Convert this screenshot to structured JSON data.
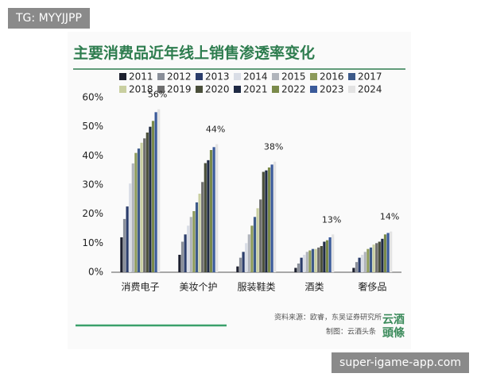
{
  "top_tag": "TG: MYYJJPP",
  "bottom_tag": "super-igame-app.com",
  "source": "资料来源：欧睿，东吴证券研究所",
  "credit": "制图：云酒头条",
  "logo": [
    "云酒",
    "頭條"
  ],
  "chart_data": {
    "type": "bar",
    "title": "主要消费品近年线上销售渗透率变化",
    "categories": [
      "消费电子",
      "美妆个护",
      "服装鞋类",
      "酒类",
      "奢侈品"
    ],
    "ylim": [
      0,
      60
    ],
    "yticks": [
      {
        "value": 0,
        "label": "0%"
      },
      {
        "value": 10,
        "label": "10%"
      },
      {
        "value": 20,
        "label": "20%"
      },
      {
        "value": 30,
        "label": "30%"
      },
      {
        "value": 40,
        "label": "40%"
      },
      {
        "value": 50,
        "label": "50%"
      },
      {
        "value": 60,
        "label": "60%"
      }
    ],
    "grid": false,
    "legend": "top",
    "series": [
      {
        "name": "2011",
        "color": "#1c1f2e",
        "values": [
          12,
          6,
          2,
          1.5,
          1.5
        ]
      },
      {
        "name": "2012",
        "color": "#8a8f99",
        "values": [
          18.3,
          10.5,
          5,
          3,
          3.5
        ]
      },
      {
        "name": "2013",
        "color": "#2b3d6b",
        "values": [
          22.6,
          13,
          7,
          5,
          5
        ]
      },
      {
        "name": "2014",
        "color": "#d9dde6",
        "values": [
          30.5,
          16,
          10,
          6,
          6
        ]
      },
      {
        "name": "2015",
        "color": "#b0b4bb",
        "values": [
          37.4,
          19,
          13,
          7,
          7
        ]
      },
      {
        "name": "2016",
        "color": "#8c9a5a",
        "values": [
          41,
          21,
          16,
          7.5,
          8
        ]
      },
      {
        "name": "2017",
        "color": "#3d5a8a",
        "values": [
          42.5,
          24,
          19,
          8,
          8.5
        ]
      },
      {
        "name": "2018",
        "color": "#c9cfa0",
        "values": [
          44.5,
          27,
          22,
          8,
          9.5
        ]
      },
      {
        "name": "2019",
        "color": "#6e6e6e",
        "values": [
          46,
          31,
          25,
          8.5,
          10
        ]
      },
      {
        "name": "2020",
        "color": "#4a4f3a",
        "values": [
          48,
          37.5,
          34.5,
          9,
          10.5
        ]
      },
      {
        "name": "2021",
        "color": "#1f2a44",
        "values": [
          50,
          38.5,
          35,
          10.5,
          11.5
        ]
      },
      {
        "name": "2022",
        "color": "#7a8a4a",
        "values": [
          52,
          42,
          36,
          11,
          13
        ]
      },
      {
        "name": "2023",
        "color": "#3a5a9a",
        "values": [
          55,
          43,
          37,
          12,
          13.5
        ]
      },
      {
        "name": "2024",
        "color": "#e3e3e3",
        "values": [
          56,
          44,
          38,
          13,
          14
        ],
        "value_labels": [
          "56%",
          "44%",
          "38%",
          "13%",
          "14%"
        ]
      }
    ]
  }
}
